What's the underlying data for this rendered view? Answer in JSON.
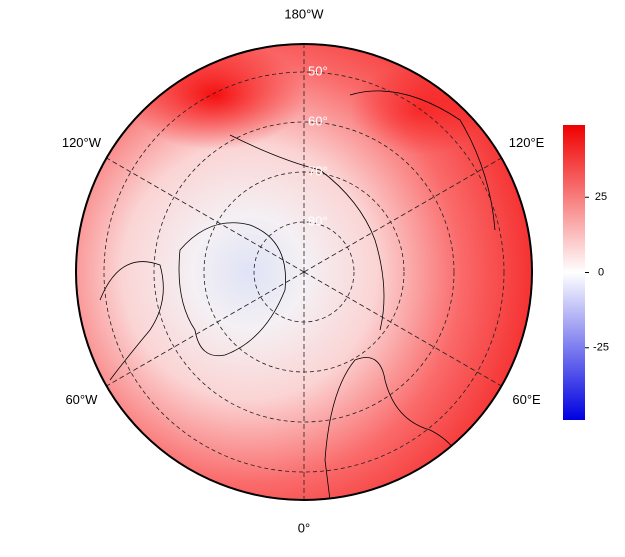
{
  "map": {
    "longitude_labels": [
      {
        "value": 180,
        "label": "180°W"
      },
      {
        "value": -120,
        "label": "120°W"
      },
      {
        "value": 120,
        "label": "120°E"
      },
      {
        "value": -60,
        "label": "60°W"
      },
      {
        "value": 60,
        "label": "60°E"
      },
      {
        "value": 0,
        "label": "0°"
      }
    ],
    "latitude_labels": [
      {
        "value": 50,
        "label": "50°"
      },
      {
        "value": 60,
        "label": "60°"
      },
      {
        "value": 70,
        "label": "70°"
      },
      {
        "value": 80,
        "label": "80°"
      }
    ],
    "colorbar": {
      "lim": [
        -49,
        49
      ],
      "ticks": [
        25,
        0,
        -25
      ]
    }
  }
}
